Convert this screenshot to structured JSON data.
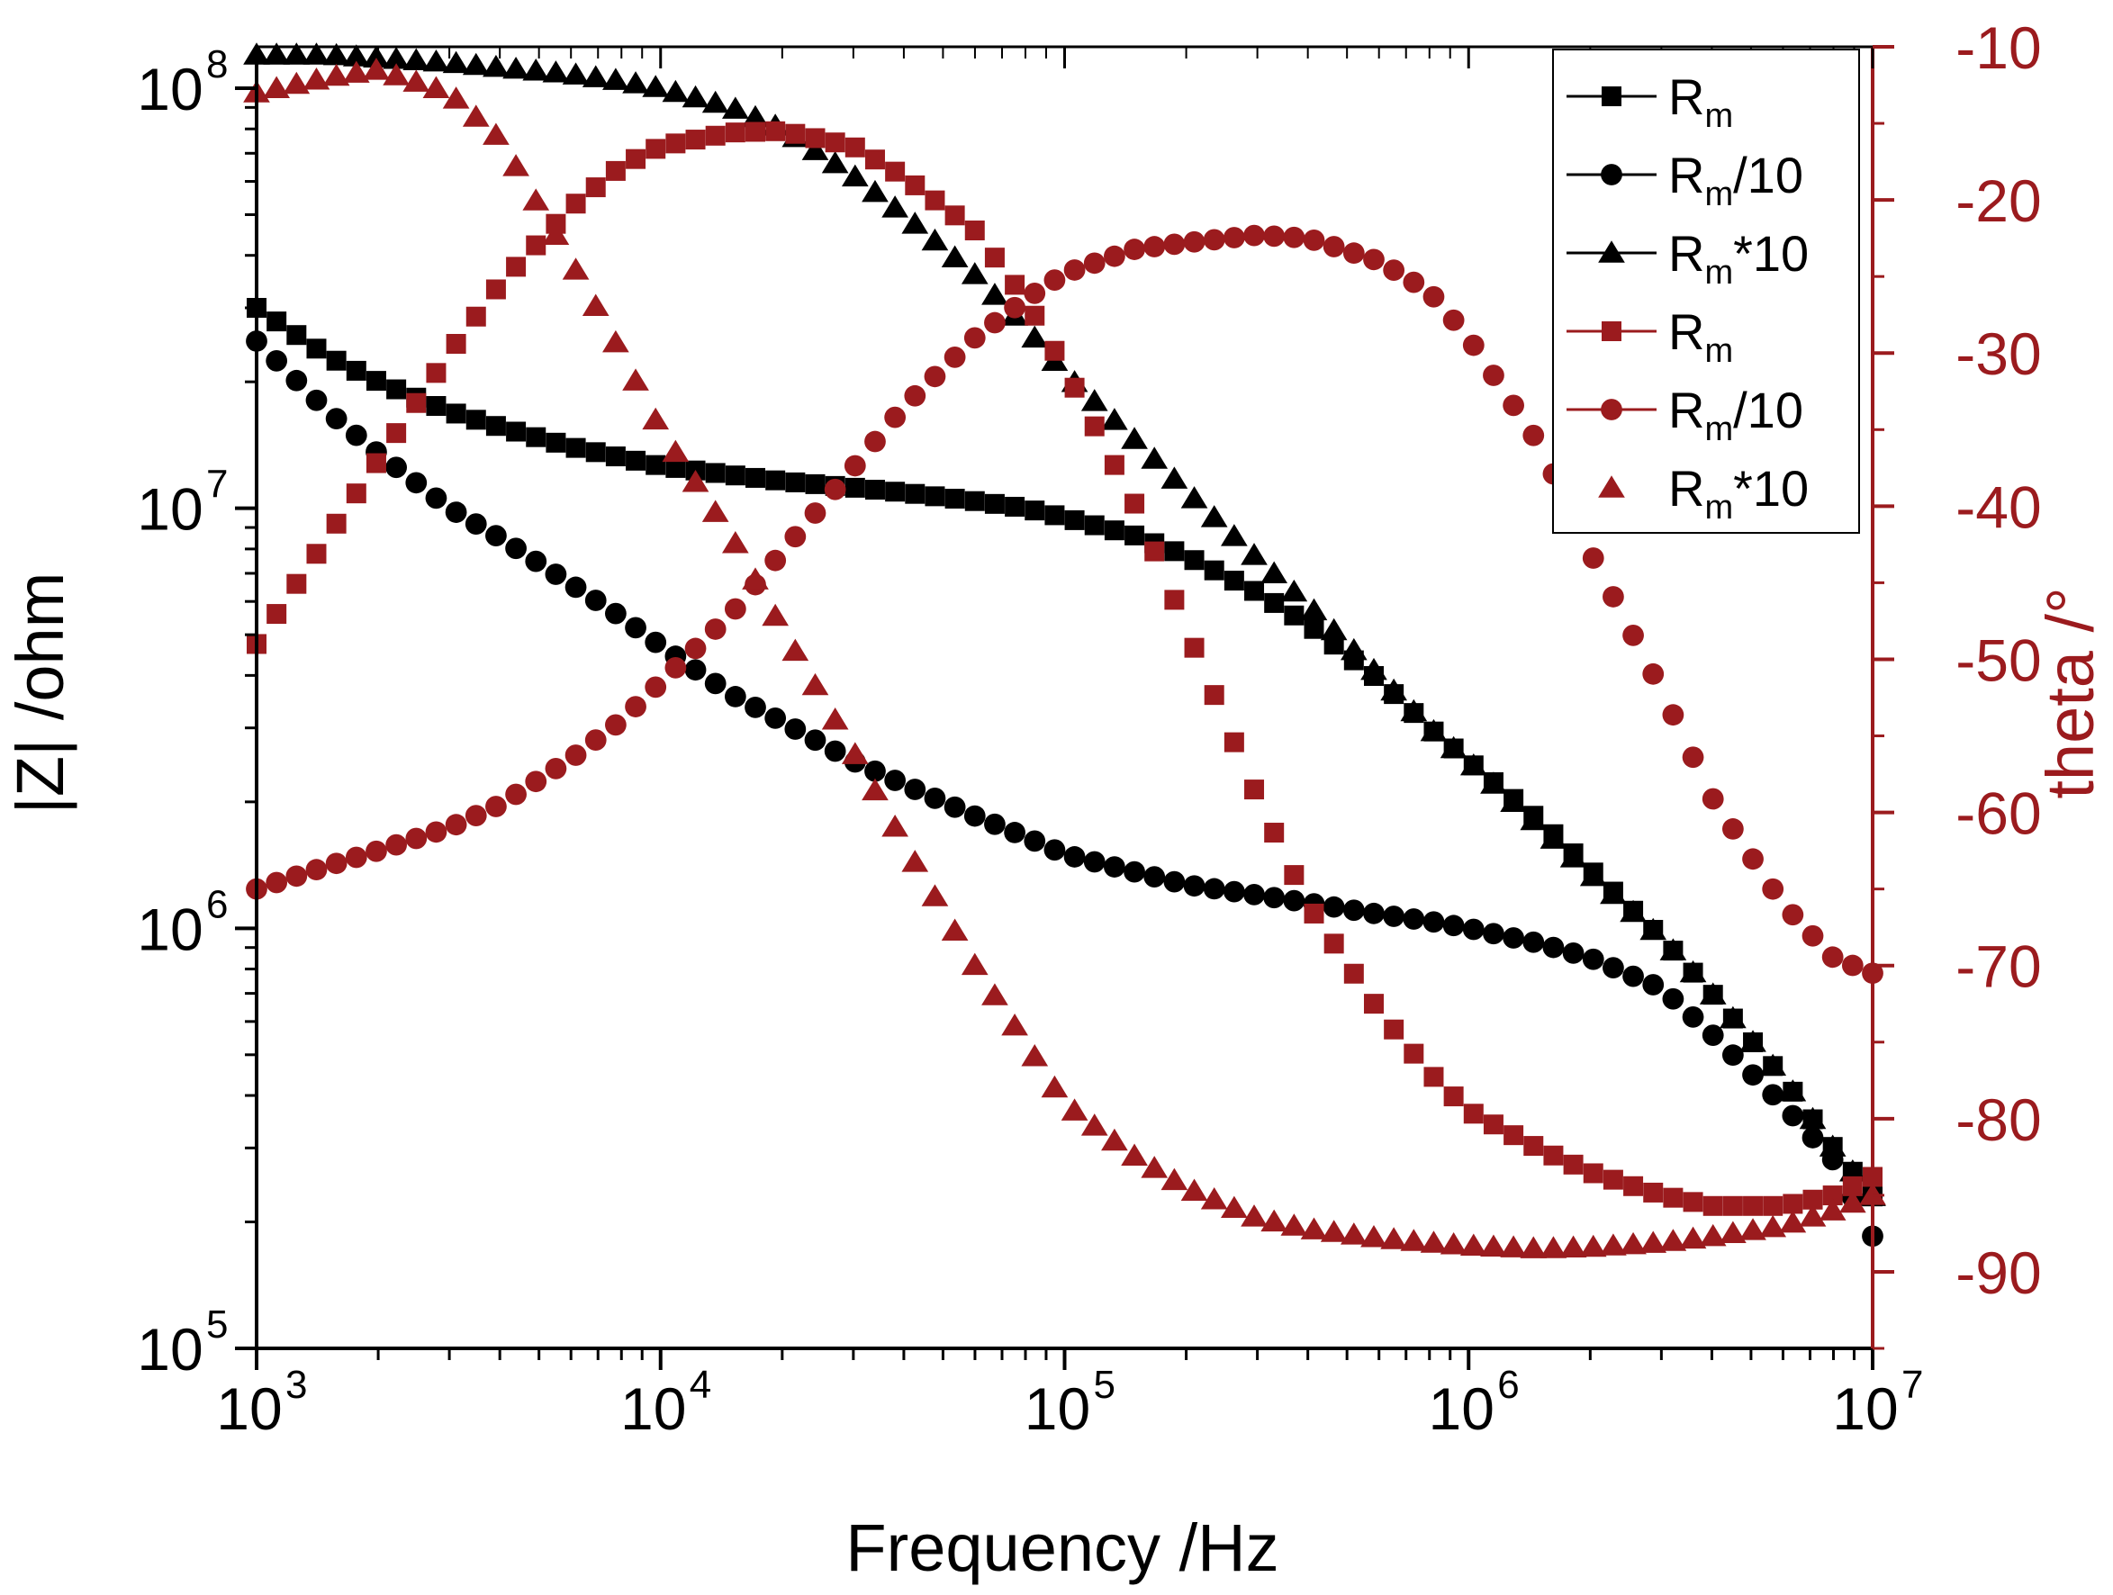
{
  "colors": {
    "black": "#000000",
    "red": "#9b1b1e",
    "background": "#ffffff"
  },
  "chart_data": {
    "type": "scatter",
    "title": "",
    "xlabel": "Frequency /Hz",
    "ylabel_left": "|Z| /ohm",
    "ylabel_right": "theta /°",
    "x_scale": "log",
    "x_range": [
      1000,
      10000000
    ],
    "y_left_scale": "log",
    "y_left_range": [
      100000,
      100000000
    ],
    "y_right_scale": "linear",
    "y_right_range": [
      -95,
      -10
    ],
    "x_ticks": [
      {
        "base": "10",
        "exp": "3"
      },
      {
        "base": "10",
        "exp": "4"
      },
      {
        "base": "10",
        "exp": "5"
      },
      {
        "base": "10",
        "exp": "6"
      },
      {
        "base": "10",
        "exp": "7"
      }
    ],
    "y_left_ticks": [
      {
        "base": "10",
        "exp": "5"
      },
      {
        "base": "10",
        "exp": "6"
      },
      {
        "base": "10",
        "exp": "7"
      },
      {
        "base": "10",
        "exp": "8"
      }
    ],
    "y_right_ticks": [
      "-10",
      "-20",
      "-30",
      "-40",
      "-50",
      "-60",
      "-70",
      "-80",
      "-90"
    ],
    "grid": false,
    "legend_position": "top-right",
    "legend": [
      {
        "base": "R",
        "sub": "m",
        "suffix": "",
        "color": "black",
        "marker": "square",
        "line": true
      },
      {
        "base": "R",
        "sub": "m",
        "suffix": "/10",
        "color": "black",
        "marker": "circle",
        "line": true
      },
      {
        "base": "R",
        "sub": "m",
        "suffix": "*10",
        "color": "black",
        "marker": "triangle",
        "line": true
      },
      {
        "base": "R",
        "sub": "m",
        "suffix": "",
        "color": "red",
        "marker": "square",
        "line": true
      },
      {
        "base": "R",
        "sub": "m",
        "suffix": "/10",
        "color": "red",
        "marker": "circle",
        "line": true
      },
      {
        "base": "R",
        "sub": "m",
        "suffix": "*10",
        "color": "red",
        "marker": "triangle",
        "line": false
      }
    ],
    "x": [
      1000,
      1500,
      2000,
      3000,
      4000,
      6000,
      8000,
      10000,
      15000,
      20000,
      30000,
      40000,
      60000,
      80000,
      100000,
      150000,
      200000,
      300000,
      400000,
      600000,
      800000,
      1000000,
      1500000,
      2000000,
      3000000,
      4000000,
      6000000,
      8000000,
      10000000
    ],
    "series": [
      {
        "axis": "left",
        "color": "black",
        "marker": "square",
        "values": [
          30000000,
          23000000,
          20000000,
          17000000,
          15600000,
          14000000,
          13200000,
          12600000,
          12000000,
          11600000,
          11200000,
          10900000,
          10400000,
          10000000,
          9500000,
          8600000,
          7700000,
          6300000,
          5300000,
          3900000,
          3000000,
          2500000,
          1800000,
          1380000,
          950000,
          700000,
          440000,
          300000,
          230000
        ]
      },
      {
        "axis": "left",
        "color": "black",
        "marker": "circle",
        "values": [
          25000000,
          17000000,
          13500000,
          10000000,
          8500000,
          6600000,
          5500000,
          4700000,
          3600000,
          3100000,
          2500000,
          2200000,
          1850000,
          1650000,
          1500000,
          1360000,
          1270000,
          1200000,
          1150000,
          1080000,
          1040000,
          1000000,
          920000,
          850000,
          720000,
          560000,
          380000,
          280000,
          185000
        ]
      },
      {
        "axis": "left",
        "color": "black",
        "marker": "triangle",
        "values": [
          120000000,
          120000000,
          118000000,
          115000000,
          112000000,
          108000000,
          104000000,
          100000000,
          90000000,
          80000000,
          62000000,
          50000000,
          36000000,
          27000000,
          21000000,
          14500000,
          11000000,
          7600000,
          5900000,
          4000000,
          3000000,
          2500000,
          1750000,
          1350000,
          950000,
          700000,
          440000,
          300000,
          230000
        ]
      },
      {
        "axis": "right",
        "color": "red",
        "marker": "square",
        "values": [
          -49,
          -42,
          -37,
          -30,
          -25.5,
          -20.5,
          -17.8,
          -16.5,
          -15.6,
          -15.5,
          -16.5,
          -18.5,
          -22,
          -26.5,
          -31,
          -40,
          -48,
          -59,
          -66,
          -73,
          -77,
          -79.5,
          -82,
          -83.5,
          -85,
          -85.7,
          -85.7,
          -85,
          -83.8
        ]
      },
      {
        "axis": "right",
        "color": "red",
        "marker": "circle",
        "values": [
          -65,
          -63.5,
          -62.5,
          -61,
          -59.5,
          -56.5,
          -54,
          -51.5,
          -47,
          -43,
          -37.5,
          -33.5,
          -29,
          -26.5,
          -24.8,
          -23.2,
          -22.8,
          -22.3,
          -22.5,
          -24,
          -26,
          -29,
          -36,
          -43,
          -52,
          -59,
          -66,
          -69.5,
          -70.5
        ]
      },
      {
        "axis": "right",
        "color": "red",
        "marker": "triangle",
        "values": [
          -13,
          -12,
          -11.5,
          -13,
          -16,
          -24,
          -30,
          -35,
          -42,
          -48,
          -56,
          -62,
          -70,
          -75,
          -79,
          -82.5,
          -84.5,
          -86.5,
          -87.2,
          -87.8,
          -88.1,
          -88.3,
          -88.5,
          -88.4,
          -88.1,
          -87.7,
          -87,
          -86,
          -85
        ]
      }
    ]
  }
}
